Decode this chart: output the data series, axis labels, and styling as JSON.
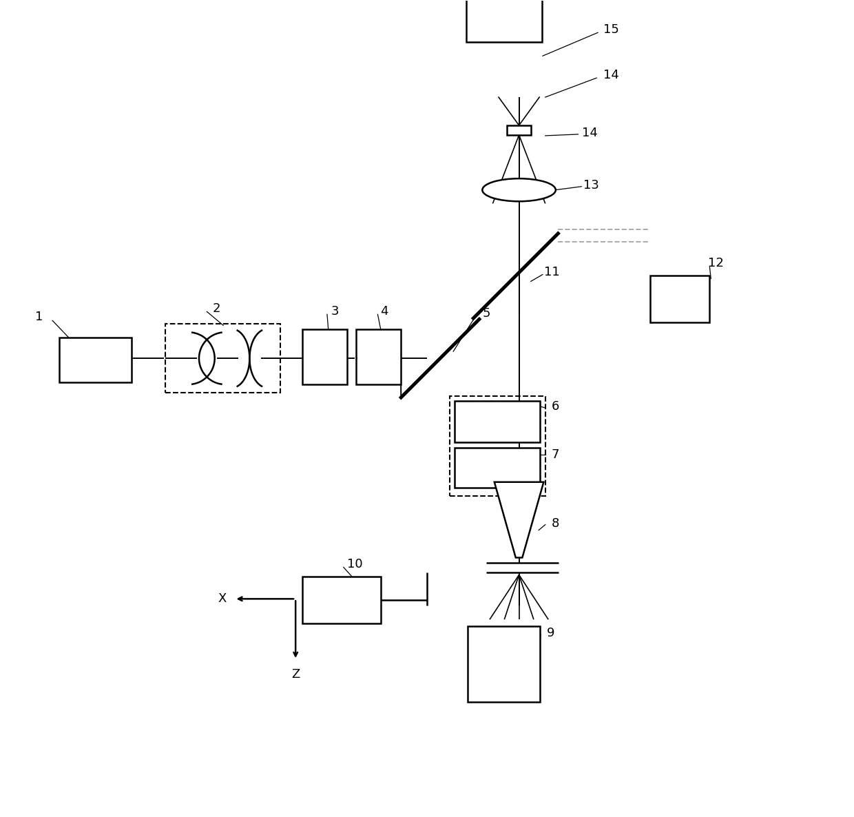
{
  "figsize": [
    12.4,
    11.86
  ],
  "dpi": 100,
  "bg": "#ffffff",
  "lw_main": 1.8,
  "lw_beam": 1.4,
  "lw_thin": 0.9,
  "fs": 13,
  "HY": 0.53,
  "VX": 0.72
}
